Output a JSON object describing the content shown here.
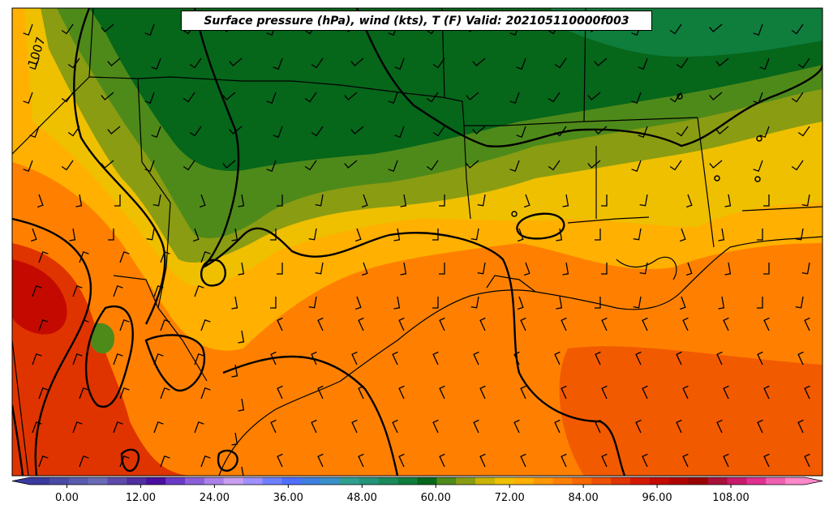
{
  "map": {
    "title": "Surface pressure (hPa), wind (kts), T (F) Valid: 202105110000f003",
    "isobar_label": "1007",
    "variables": [
      "Surface pressure (hPa)",
      "wind (kts)",
      "T (F)"
    ]
  },
  "colorbar": {
    "min": -6,
    "max": 120,
    "tick_labels": [
      "0.00",
      "12.00",
      "24.00",
      "36.00",
      "48.00",
      "60.00",
      "72.00",
      "84.00",
      "96.00",
      "108.00"
    ],
    "tick_values": [
      0,
      12,
      24,
      36,
      48,
      60,
      72,
      84,
      96,
      108
    ],
    "colors": [
      "#3a3a9e",
      "#4a4aa6",
      "#5a5aae",
      "#6a6ab6",
      "#5e4aaa",
      "#4f2fa0",
      "#4a0fa0",
      "#6a3ac6",
      "#8a60d8",
      "#aa80e8",
      "#c89ef0",
      "#a090ff",
      "#6f80ff",
      "#4f6fff",
      "#3f7fe0",
      "#3a90c8",
      "#2fa090",
      "#24947a",
      "#1a8a5a",
      "#0f7d3c",
      "#06661a",
      "#4e8a1a",
      "#8a9c12",
      "#c8b400",
      "#eec000",
      "#ffb000",
      "#ff9800",
      "#ff8000",
      "#f86800",
      "#ee5000",
      "#e03400",
      "#d41800",
      "#c40a00",
      "#b00000",
      "#9a0000",
      "#a8103a",
      "#c81a6a",
      "#e03090",
      "#f060b0",
      "#ff88c8"
    ]
  }
}
